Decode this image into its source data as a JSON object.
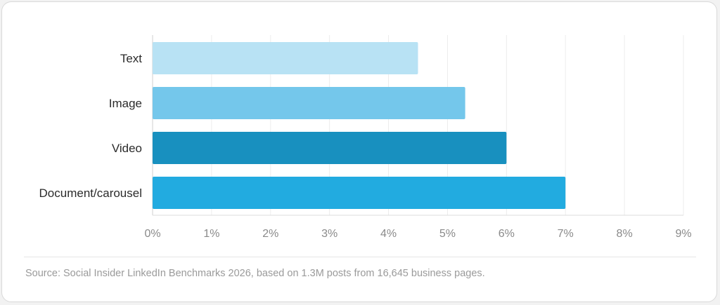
{
  "chart_data": {
    "type": "bar",
    "orientation": "horizontal",
    "categories": [
      "Text",
      "Image",
      "Video",
      "Document/carousel"
    ],
    "values": [
      4.5,
      5.3,
      6.0,
      7.0
    ],
    "colors": [
      "#b8e2f4",
      "#74c7eb",
      "#1890bf",
      "#22abe0"
    ],
    "xlim": [
      0,
      9
    ],
    "x_ticks": [
      "0%",
      "1%",
      "2%",
      "3%",
      "4%",
      "5%",
      "6%",
      "7%",
      "8%",
      "9%"
    ],
    "grid": "vertical",
    "title": "",
    "xlabel": "",
    "ylabel": ""
  },
  "footer": {
    "source": "Source: Social Insider LinkedIn Benchmarks 2026, based on 1.3M posts from 16,645 business pages."
  }
}
